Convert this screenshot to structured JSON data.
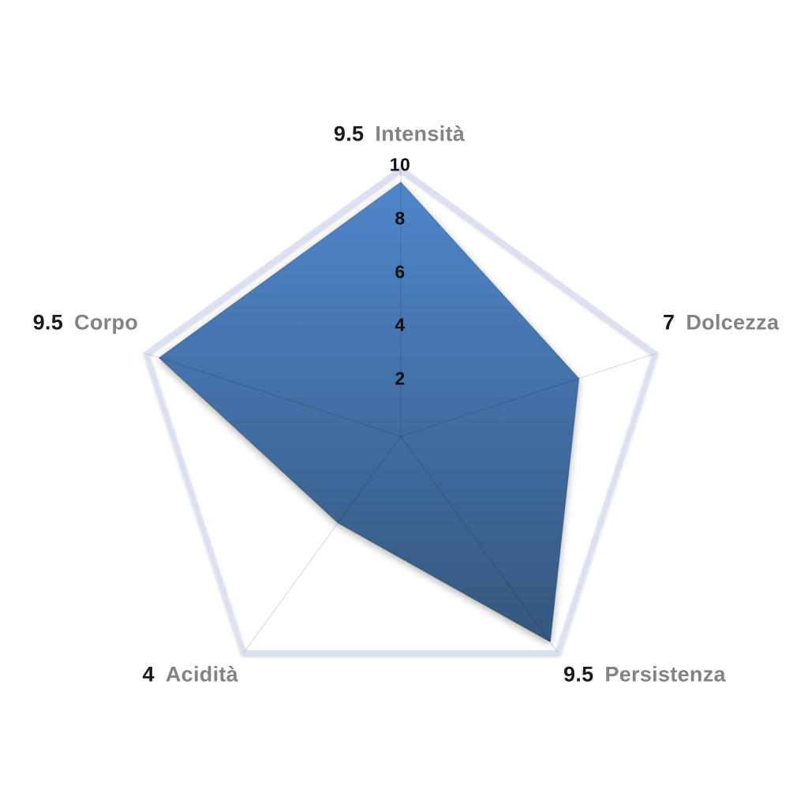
{
  "chart_data": {
    "type": "radar",
    "categories": [
      "Intensità",
      "Dolcezza",
      "Persistenza",
      "Acidità",
      "Corpo"
    ],
    "values": [
      9.5,
      7,
      9.5,
      4,
      9.5
    ],
    "value_labels": [
      "9.5",
      "7",
      "9.5",
      "4",
      "9.5"
    ],
    "axis_ticks": [
      "2",
      "4",
      "6",
      "8",
      "10"
    ],
    "scale_min": 0,
    "scale_max": 10,
    "title": "",
    "legend": "none",
    "grid": "outer pentagon ring with radial spokes, no inner rings",
    "colors": {
      "fill_gradient_top": "#4f86cb",
      "fill_gradient_bottom": "#34577d",
      "outer_ring": "#dce1f2",
      "spoke": "rgba(0,0,0,0.16)",
      "value_number": "#1a1a1a",
      "category_name": "#838383",
      "tick_label": "#111111",
      "background": "#ffffff"
    }
  }
}
